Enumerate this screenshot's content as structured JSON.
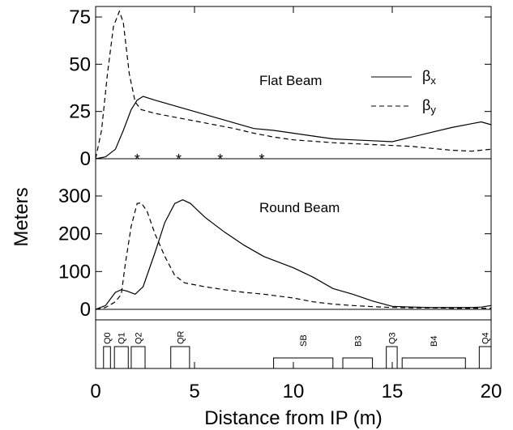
{
  "chart_data": [
    {
      "type": "line",
      "title": "Flat Beam",
      "ylabel": "Meters",
      "xlim": [
        0,
        20
      ],
      "ylim": [
        0,
        80
      ],
      "yticks": [
        0,
        25,
        50,
        75
      ],
      "legend": {
        "placement": "top-right",
        "entries": [
          {
            "base": "β",
            "sub": "x",
            "style": "solid"
          },
          {
            "base": "β",
            "sub": "y",
            "style": "dashed"
          }
        ]
      },
      "series": [
        {
          "name": "βx",
          "style": "solid",
          "x": [
            0,
            0.5,
            1.0,
            1.4,
            1.8,
            2.1,
            2.4,
            3,
            4,
            5,
            6,
            7,
            8,
            9,
            10,
            11,
            12,
            13,
            14,
            15,
            16,
            17,
            18,
            19,
            19.5,
            20
          ],
          "y": [
            0,
            1,
            5,
            15,
            26,
            31,
            33,
            31,
            28,
            25,
            22,
            19,
            16,
            15,
            13.5,
            12,
            10.5,
            10,
            9.5,
            9,
            11.5,
            14,
            16.5,
            18.5,
            19.5,
            18
          ]
        },
        {
          "name": "βy",
          "style": "dashed",
          "x": [
            0,
            0.3,
            0.6,
            0.9,
            1.2,
            1.4,
            1.7,
            2.0,
            2.3,
            3,
            4,
            5,
            6,
            7,
            8,
            9,
            10,
            12,
            14,
            16,
            17,
            18,
            19,
            20
          ],
          "y": [
            0,
            15,
            45,
            70,
            78,
            72,
            45,
            30,
            26,
            24,
            22,
            20,
            18,
            16,
            13.5,
            11.5,
            10,
            8.5,
            7.5,
            6.5,
            5.5,
            4.5,
            4,
            5
          ]
        }
      ],
      "markers": {
        "symbol": "*",
        "x": [
          2.1,
          4.2,
          6.3,
          8.4
        ],
        "y": 0
      }
    },
    {
      "type": "line",
      "title": "Round Beam",
      "xlim": [
        0,
        20
      ],
      "ylim": [
        0,
        320
      ],
      "yticks": [
        0,
        100,
        200,
        300
      ],
      "series": [
        {
          "name": "βx",
          "style": "solid",
          "x": [
            0,
            0.5,
            1.0,
            1.3,
            1.6,
            2.0,
            2.4,
            3,
            3.5,
            4,
            4.4,
            4.8,
            5.5,
            6.5,
            7.5,
            8.5,
            10,
            11,
            12,
            13,
            14,
            15,
            16,
            17,
            18,
            19,
            19.5,
            20
          ],
          "y": [
            0,
            10,
            45,
            52,
            48,
            40,
            60,
            150,
            230,
            280,
            290,
            280,
            245,
            205,
            170,
            140,
            110,
            85,
            55,
            40,
            22,
            8,
            6,
            5,
            5,
            5,
            6,
            10
          ]
        },
        {
          "name": "βy",
          "style": "dashed",
          "x": [
            0,
            0.5,
            1.0,
            1.3,
            1.5,
            1.8,
            2.1,
            2.3,
            2.6,
            3,
            3.5,
            4,
            4.5,
            5.5,
            6.5,
            7.5,
            8.5,
            10,
            11,
            12,
            13,
            14,
            15,
            16,
            17,
            18,
            19,
            20
          ],
          "y": [
            0,
            5,
            20,
            40,
            120,
            220,
            280,
            282,
            260,
            200,
            140,
            90,
            70,
            60,
            52,
            45,
            40,
            30,
            20,
            14,
            10,
            7,
            5,
            4,
            4,
            3,
            3,
            3
          ]
        }
      ]
    }
  ],
  "magnets": {
    "panel": "magnet-layout",
    "elements": [
      {
        "label": "Q0",
        "x0": 0.4,
        "x1": 0.75,
        "tall": true
      },
      {
        "label": "Q1",
        "x0": 0.95,
        "x1": 1.65,
        "tall": true
      },
      {
        "label": "Q2",
        "x0": 1.8,
        "x1": 2.5,
        "tall": true
      },
      {
        "label": "QR",
        "x0": 3.8,
        "x1": 4.75,
        "tall": true
      },
      {
        "label": "SB",
        "x0": 9.0,
        "x1": 12.0,
        "tall": false
      },
      {
        "label": "B3",
        "x0": 12.5,
        "x1": 14.0,
        "tall": false
      },
      {
        "label": "Q3",
        "x0": 14.7,
        "x1": 15.25,
        "tall": true
      },
      {
        "label": "B4",
        "x0": 15.5,
        "x1": 18.7,
        "tall": false
      },
      {
        "label": "Q4",
        "x0": 19.4,
        "x1": 20.0,
        "tall": true
      }
    ]
  },
  "x_axis": {
    "label": "Distance from IP (m)",
    "ticks": [
      0,
      5,
      10,
      15,
      20
    ]
  }
}
